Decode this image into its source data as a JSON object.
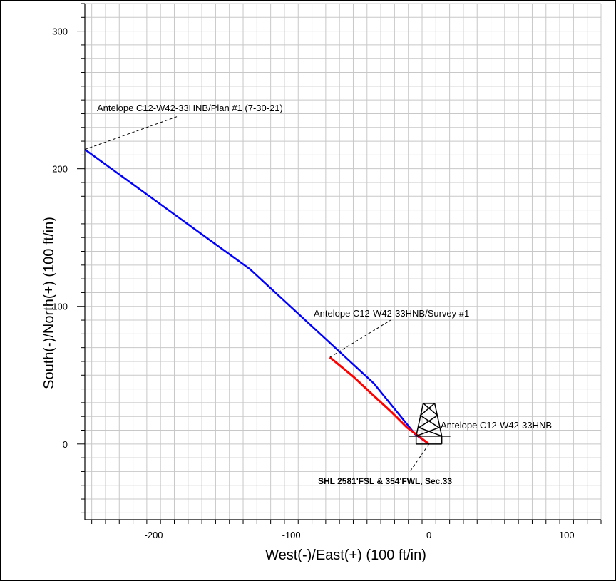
{
  "chart_data": {
    "type": "line",
    "title": "",
    "xlabel": "West(-)/East(+) (100 ft/in)",
    "ylabel": "South(-)/North(+) (100 ft/in)",
    "xlim": [
      -250,
      125
    ],
    "ylim": [
      -55,
      320
    ],
    "grid": true,
    "x_ticks": [
      -200,
      -100,
      0,
      100
    ],
    "y_ticks": [
      0,
      100,
      200,
      300
    ],
    "x_tick_labels": [
      "-200",
      "-100",
      "0",
      "100"
    ],
    "y_tick_labels": [
      "0",
      "100",
      "200",
      "300"
    ],
    "series": [
      {
        "color": "#0000ff",
        "points": [
          [
            -250,
            214
          ],
          [
            -130,
            127
          ],
          [
            -40,
            44
          ],
          [
            -10,
            7
          ],
          [
            0,
            0
          ]
        ]
      },
      {
        "color": "#ff0000",
        "points": [
          [
            -72,
            63
          ],
          [
            -55,
            49
          ],
          [
            -40,
            35
          ],
          [
            -27,
            23
          ],
          [
            -16,
            12
          ],
          [
            -8,
            6
          ],
          [
            0,
            0
          ]
        ]
      }
    ],
    "annotations": [
      {
        "text": "Antelope C12-W42-33HNB/Plan #1 (7-30-21)",
        "style": "normal"
      },
      {
        "text": "Antelope C12-W42-33HNB/Survey #1",
        "style": "normal"
      },
      {
        "text": "Antelope C12-W42-33HNB",
        "style": "normal"
      },
      {
        "text": "SHL 2581'FSL & 354'FWL, Sec.33",
        "style": "bold"
      }
    ]
  }
}
